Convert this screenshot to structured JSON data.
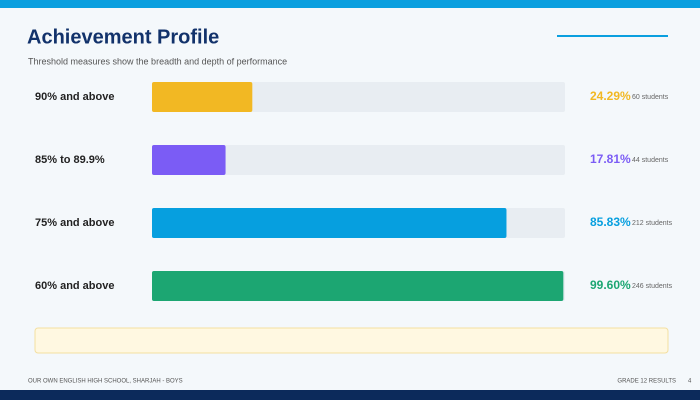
{
  "chart_data": {
    "type": "bar",
    "title": "Achievement Profile",
    "subtitle": "Threshold measures show the breadth and depth of performance",
    "categories": [
      "90% and above",
      "85% to 89.9%",
      "75% and above",
      "60% and above"
    ],
    "values": [
      24.29,
      17.81,
      85.83,
      99.6
    ],
    "value_labels": [
      "24.29%",
      "17.81%",
      "85.83%",
      "99.60%"
    ],
    "student_labels": [
      "60 students",
      "44 students",
      "212 students",
      "246 students"
    ],
    "colors": [
      "#f2b823",
      "#7b5cf5",
      "#069fdf",
      "#1ca672"
    ],
    "xlim": [
      0,
      100
    ],
    "footer_left": "OUR OWN ENGLISH HIGH SCHOOL, SHARJAH - BOYS",
    "footer_right": "GRADE 12 RESULTS",
    "page_number": "4"
  }
}
